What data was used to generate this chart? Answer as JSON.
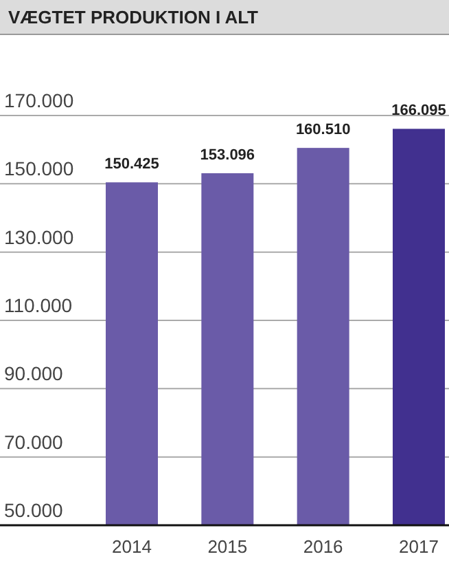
{
  "chart_data": {
    "type": "bar",
    "title": "VÆGTET PRODUKTION I ALT",
    "categories": [
      "2014",
      "2015",
      "2016",
      "2017"
    ],
    "values": [
      150425,
      153096,
      160510,
      166095
    ],
    "colors": [
      "#6a5ba8",
      "#6a5ba8",
      "#6a5ba8",
      "#41308f"
    ],
    "value_labels": [
      "150.425",
      "153.096",
      "160.510",
      "166.095"
    ],
    "ylim": [
      50000,
      170000
    ],
    "yticks": [
      {
        "value": 50000,
        "label": "50.000"
      },
      {
        "value": 70000,
        "label": "70.000"
      },
      {
        "value": 90000,
        "label": "90.000"
      },
      {
        "value": 110000,
        "label": "110.000"
      },
      {
        "value": 130000,
        "label": "130.000"
      },
      {
        "value": 150000,
        "label": "150.000"
      },
      {
        "value": 170000,
        "label": "170.000"
      }
    ],
    "grid": "y"
  }
}
